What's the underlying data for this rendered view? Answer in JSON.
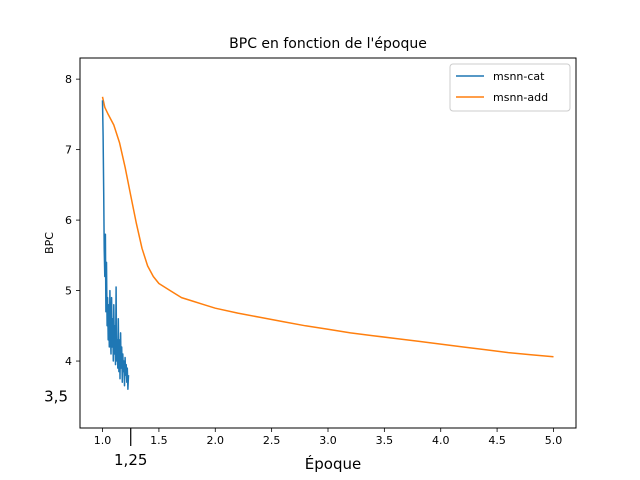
{
  "chart_data": {
    "type": "line",
    "title": "BPC en fonction de l'époque",
    "xlabel": "Époque",
    "ylabel": "BPC",
    "xlim": [
      0.8,
      5.2
    ],
    "ylim": [
      3.05,
      8.3
    ],
    "grid": false,
    "legend_position": "top-right",
    "x_ticks": [
      1.0,
      1.5,
      2.0,
      2.5,
      3.0,
      3.5,
      4.0,
      4.5,
      5.0
    ],
    "x_tick_labels": [
      "1.0",
      "1.5",
      "2.0",
      "2.5",
      "3.0",
      "3.5",
      "4.0",
      "4.5",
      "5.0"
    ],
    "y_ticks": [
      4,
      5,
      6,
      7,
      8
    ],
    "y_tick_labels": [
      "4",
      "5",
      "6",
      "7",
      "8"
    ],
    "extra_x_tick": {
      "value": 1.25,
      "label": "1,25"
    },
    "extra_y_tick": {
      "value": 3.5,
      "label": "3,5"
    },
    "series": [
      {
        "name": "msnn-cat",
        "color": "#1f77b4",
        "x": [
          1.0,
          1.005,
          1.01,
          1.015,
          1.02,
          1.025,
          1.03,
          1.035,
          1.04,
          1.045,
          1.05,
          1.055,
          1.06,
          1.065,
          1.07,
          1.075,
          1.08,
          1.085,
          1.09,
          1.095,
          1.1,
          1.105,
          1.11,
          1.115,
          1.12,
          1.125,
          1.13,
          1.135,
          1.14,
          1.145,
          1.15,
          1.155,
          1.16,
          1.165,
          1.17,
          1.175,
          1.18,
          1.185,
          1.19,
          1.195,
          1.2,
          1.205,
          1.21,
          1.215,
          1.22,
          1.225,
          1.23
        ],
        "values": [
          7.7,
          7.2,
          6.4,
          5.6,
          5.2,
          5.8,
          4.7,
          5.4,
          4.5,
          4.9,
          4.3,
          4.8,
          4.2,
          5.0,
          4.4,
          4.1,
          4.9,
          4.2,
          4.6,
          4.0,
          4.8,
          4.1,
          4.5,
          3.95,
          5.05,
          4.0,
          4.3,
          3.9,
          4.6,
          3.85,
          4.3,
          3.75,
          4.4,
          3.9,
          4.2,
          3.7,
          4.1,
          3.85,
          4.0,
          3.65,
          4.05,
          3.8,
          3.95,
          3.7,
          3.9,
          3.6,
          3.8
        ]
      },
      {
        "name": "msnn-add",
        "color": "#ff7f0e",
        "x": [
          1.0,
          1.02,
          1.05,
          1.1,
          1.15,
          1.2,
          1.25,
          1.3,
          1.35,
          1.4,
          1.45,
          1.5,
          1.6,
          1.7,
          1.8,
          1.9,
          2.0,
          2.2,
          2.4,
          2.6,
          2.8,
          3.0,
          3.2,
          3.4,
          3.6,
          3.8,
          4.0,
          4.2,
          4.4,
          4.6,
          4.8,
          5.0
        ],
        "values": [
          7.75,
          7.6,
          7.5,
          7.35,
          7.1,
          6.75,
          6.35,
          5.95,
          5.6,
          5.35,
          5.2,
          5.1,
          5.0,
          4.9,
          4.85,
          4.8,
          4.75,
          4.68,
          4.62,
          4.56,
          4.5,
          4.45,
          4.4,
          4.36,
          4.32,
          4.28,
          4.24,
          4.2,
          4.16,
          4.12,
          4.09,
          4.06
        ]
      }
    ]
  }
}
